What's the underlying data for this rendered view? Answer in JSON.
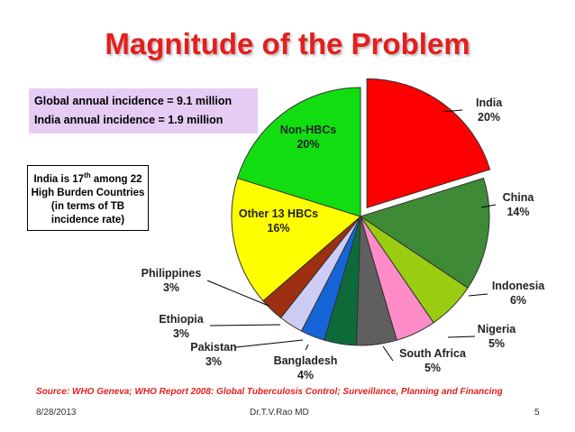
{
  "slide": {
    "title": "Magnitude of the Problem",
    "stats_line1": "Global annual incidence = 9.1 million",
    "stats_line2": "India annual incidence = 1.9 million",
    "note_part1": "India is 17",
    "note_sup": "th",
    "note_part2": " among 22 High Burden Countries (in terms of TB incidence rate)",
    "source": "Source: WHO Geneva; WHO Report 2008: Global Tuberculosis Control; Surveillance, Planning and Financing",
    "footer_date": "8/28/2013",
    "footer_author": "Dr.T.V.Rao MD",
    "footer_page": "5"
  },
  "chart_data": {
    "type": "pie",
    "title": "",
    "exploded_slice": "India",
    "slices": [
      {
        "name": "India",
        "value": 20,
        "label": "20%",
        "color": "#ff0000"
      },
      {
        "name": "China",
        "value": 14,
        "label": "14%",
        "color": "#3e8a36"
      },
      {
        "name": "Indonesia",
        "value": 6,
        "label": "6%",
        "color": "#9acd12"
      },
      {
        "name": "Nigeria",
        "value": 5,
        "label": "5%",
        "color": "#ff8cc6"
      },
      {
        "name": "South Africa",
        "value": 5,
        "label": "5%",
        "color": "#5f5f5f"
      },
      {
        "name": "Bangladesh",
        "value": 4,
        "label": "4%",
        "color": "#0d6b3a"
      },
      {
        "name": "Pakistan",
        "value": 3,
        "label": "3%",
        "color": "#1565d8"
      },
      {
        "name": "Ethiopia",
        "value": 3,
        "label": "3%",
        "color": "#ccccf5"
      },
      {
        "name": "Philippines",
        "value": 3,
        "label": "3%",
        "color": "#9c3010"
      },
      {
        "name": "Other 13 HBCs",
        "value": 16,
        "label": "16%",
        "color": "#ffff00"
      },
      {
        "name": "Non-HBCs",
        "value": 20,
        "label": "20%",
        "color": "#11dd11"
      }
    ]
  }
}
